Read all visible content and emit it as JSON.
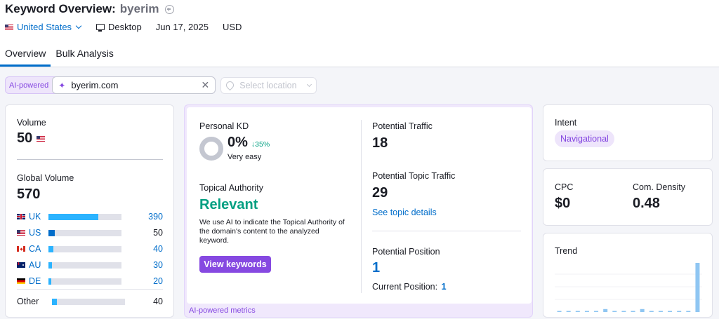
{
  "header": {
    "title_prefix": "Keyword Overview:",
    "keyword": "byerim",
    "country": "United States",
    "device": "Desktop",
    "date": "Jun 17, 2025",
    "currency": "USD"
  },
  "tabs": [
    {
      "label": "Overview",
      "active": true
    },
    {
      "label": "Bulk Analysis",
      "active": false
    }
  ],
  "filters": {
    "ai_label": "AI-powered",
    "domain_value": "byerim.com",
    "location_placeholder": "Select location"
  },
  "volume": {
    "label": "Volume",
    "value": "50",
    "global_label": "Global Volume",
    "global_value": "570",
    "countries": [
      {
        "code": "UK",
        "value": "390",
        "share": 0.68,
        "linked": true
      },
      {
        "code": "US",
        "value": "50",
        "share": 0.09,
        "linked": false
      },
      {
        "code": "CA",
        "value": "40",
        "share": 0.07,
        "linked": true
      },
      {
        "code": "AU",
        "value": "30",
        "share": 0.05,
        "linked": true
      },
      {
        "code": "DE",
        "value": "20",
        "share": 0.04,
        "linked": true
      }
    ],
    "other": {
      "label": "Other",
      "value": "40",
      "share": 0.07
    }
  },
  "ai_metrics": {
    "personal_kd_label": "Personal KD",
    "personal_kd_value": "0%",
    "personal_kd_change": "↓35%",
    "personal_kd_desc": "Very easy",
    "topical_label": "Topical Authority",
    "topical_value": "Relevant",
    "topical_desc": "We use AI to indicate the Topical Authority of the domain's content to the analyzed keyword.",
    "view_button": "View keywords",
    "traffic_label": "Potential Traffic",
    "traffic_value": "18",
    "topic_traffic_label": "Potential Topic Traffic",
    "topic_traffic_value": "29",
    "topic_link": "See topic details",
    "position_label": "Potential Position",
    "position_value": "1",
    "current_position_label": "Current Position:",
    "current_position_value": "1",
    "footer": "AI-powered metrics"
  },
  "intent": {
    "label": "Intent",
    "value": "Navigational"
  },
  "cpc": {
    "label": "CPC",
    "value": "$0",
    "density_label": "Com. Density",
    "density_value": "0.48"
  },
  "trend": {
    "label": "Trend",
    "values": [
      0.02,
      0.02,
      0.02,
      0.02,
      0.02,
      0.06,
      0.02,
      0.02,
      0.02,
      0.06,
      0.02,
      0.02,
      0.02,
      0.02,
      0.02,
      1.0
    ],
    "color": "#8fc6f2"
  }
}
